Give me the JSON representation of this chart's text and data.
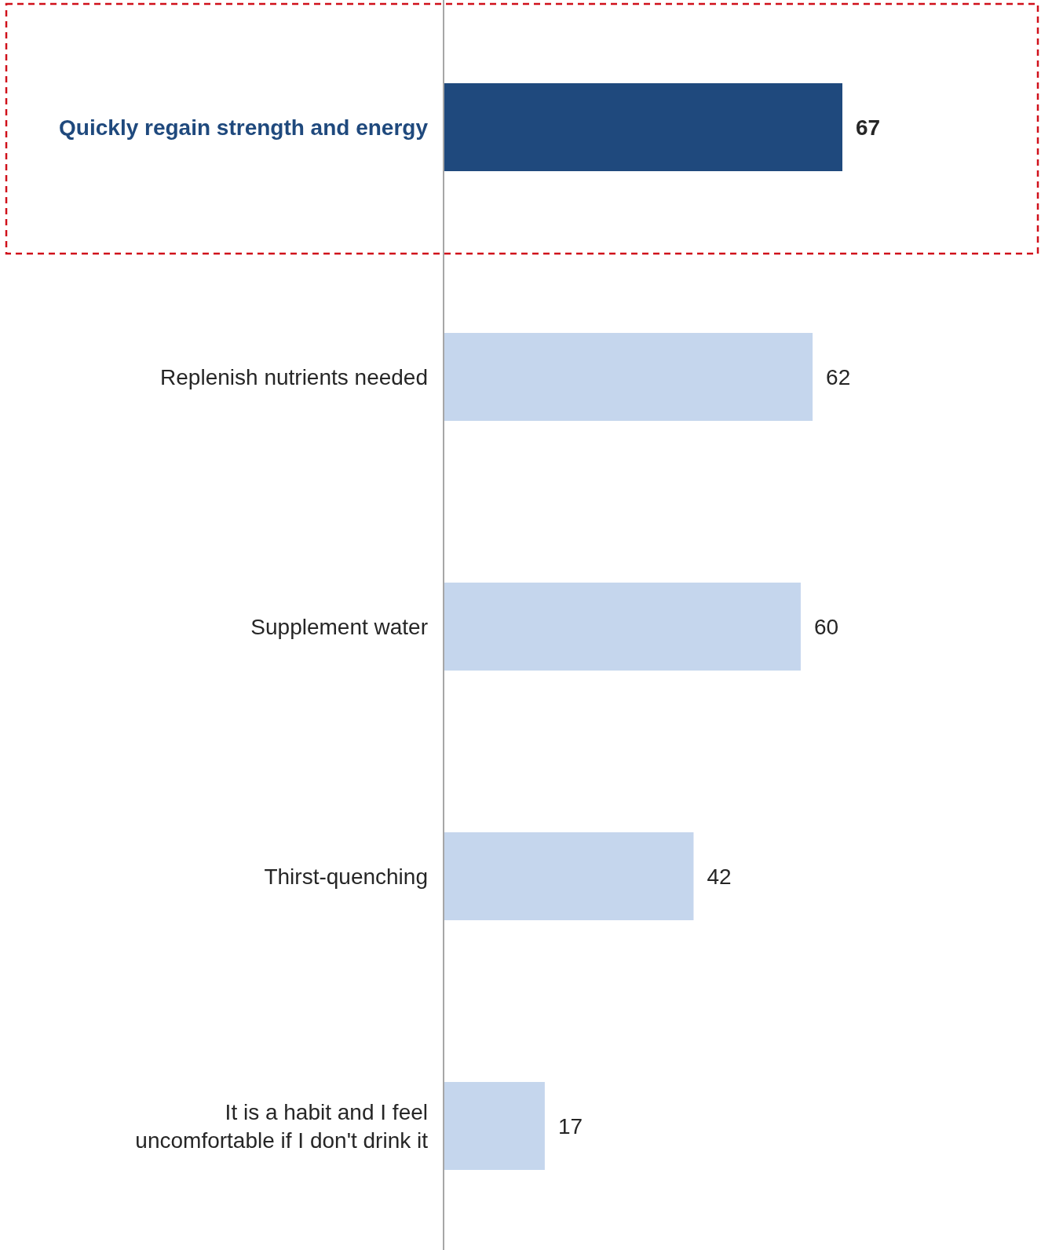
{
  "chart_data": {
    "type": "bar",
    "orientation": "horizontal",
    "categories": [
      "Quickly regain strength and energy",
      "Replenish nutrients needed",
      "Supplement water",
      "Thirst-quenching",
      "It is a habit and I feel uncomfortable if I don't drink it"
    ],
    "values": [
      67,
      62,
      60,
      42,
      17
    ],
    "colors": [
      "#1f497d",
      "#c5d6ed",
      "#c5d6ed",
      "#c5d6ed",
      "#c5d6ed"
    ],
    "data_labels": true
  }
}
